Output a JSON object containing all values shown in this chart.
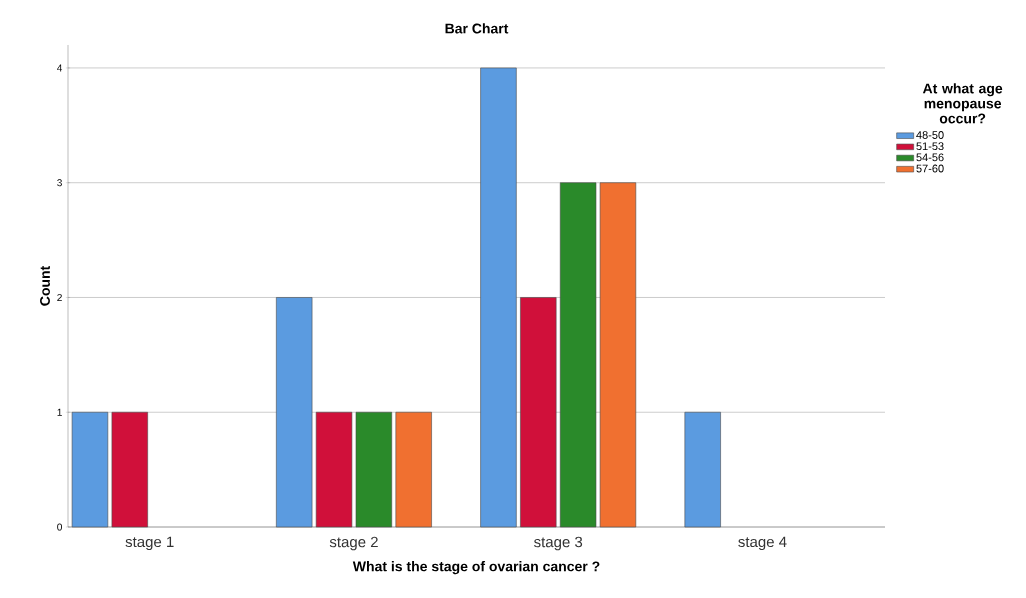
{
  "chart_data": {
    "type": "bar",
    "title": "Bar Chart",
    "xlabel": "What is the stage of ovarian cancer ?",
    "ylabel": "Count",
    "legend_title": "At what age menopause occur?",
    "categories": [
      "stage 1",
      "stage 2",
      "stage 3",
      "stage 4"
    ],
    "series": [
      {
        "name": "48-50",
        "color": "#5b9be0",
        "values": [
          1,
          2,
          4,
          1
        ]
      },
      {
        "name": "51-53",
        "color": "#d0103a",
        "values": [
          1,
          1,
          2,
          null
        ]
      },
      {
        "name": "54-56",
        "color": "#2a8a2a",
        "values": [
          null,
          1,
          3,
          null
        ]
      },
      {
        "name": "57-60",
        "color": "#f07030",
        "values": [
          null,
          1,
          3,
          null
        ]
      }
    ],
    "ylim": [
      0,
      4.2
    ],
    "yticks": [
      0,
      1,
      2,
      3,
      4
    ],
    "grid": "y",
    "legend": "right"
  }
}
